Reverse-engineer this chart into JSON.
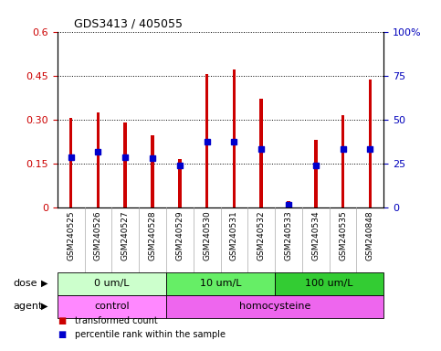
{
  "title": "GDS3413 / 405055",
  "samples": [
    "GSM240525",
    "GSM240526",
    "GSM240527",
    "GSM240528",
    "GSM240529",
    "GSM240530",
    "GSM240531",
    "GSM240532",
    "GSM240533",
    "GSM240534",
    "GSM240535",
    "GSM240848"
  ],
  "transformed_count": [
    0.305,
    0.325,
    0.29,
    0.245,
    0.165,
    0.455,
    0.47,
    0.37,
    0.02,
    0.23,
    0.315,
    0.435
  ],
  "percentile_rank_left": [
    0.17,
    0.19,
    0.17,
    0.168,
    0.143,
    0.223,
    0.223,
    0.198,
    0.008,
    0.143,
    0.198,
    0.2
  ],
  "ylim_left": [
    0,
    0.6
  ],
  "ylim_right": [
    0,
    100
  ],
  "yticks_left": [
    0,
    0.15,
    0.3,
    0.45,
    0.6
  ],
  "ytick_labels_left": [
    "0",
    "0.15",
    "0.30",
    "0.45",
    "0.6"
  ],
  "yticks_right": [
    0,
    25,
    50,
    75,
    100
  ],
  "ytick_labels_right": [
    "0",
    "25",
    "50",
    "75",
    "100%"
  ],
  "bar_color": "#cc0000",
  "dot_color": "#0000cc",
  "dose_groups": [
    {
      "label": "0 um/L",
      "start": 0,
      "end": 4,
      "color": "#ccffcc"
    },
    {
      "label": "10 um/L",
      "start": 4,
      "end": 8,
      "color": "#66ee66"
    },
    {
      "label": "100 um/L",
      "start": 8,
      "end": 12,
      "color": "#33cc33"
    }
  ],
  "agent_groups": [
    {
      "label": "control",
      "start": 0,
      "end": 4,
      "color": "#ff88ff"
    },
    {
      "label": "homocysteine",
      "start": 4,
      "end": 12,
      "color": "#ee66ee"
    }
  ],
  "dose_label": "dose",
  "agent_label": "agent",
  "legend_items": [
    {
      "label": "transformed count",
      "color": "#cc0000"
    },
    {
      "label": "percentile rank within the sample",
      "color": "#0000cc"
    }
  ],
  "bar_width": 0.12,
  "background_color": "#ffffff",
  "left_tick_color": "#cc0000",
  "right_tick_color": "#0000bb"
}
